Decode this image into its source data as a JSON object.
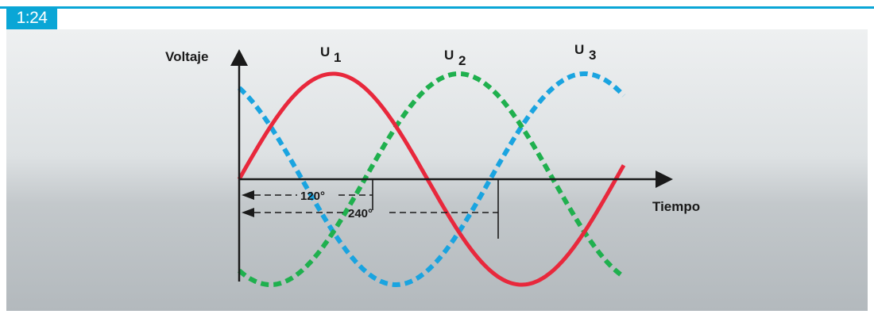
{
  "figure": {
    "number": "1:24"
  },
  "axes": {
    "y_label": "Voltaje",
    "x_label": "Tiempo"
  },
  "series": [
    {
      "name": "U",
      "subscript": "1",
      "color": "#e8283c",
      "style": "solid",
      "phase_deg": 0
    },
    {
      "name": "U",
      "subscript": "2",
      "color": "#1fb04e",
      "style": "dashed",
      "phase_deg": 120
    },
    {
      "name": "U",
      "subscript": "3",
      "color": "#1aa4e0",
      "style": "dashed",
      "phase_deg": 240
    }
  ],
  "annotations": {
    "shift_120": "120°",
    "shift_240": "240°"
  },
  "colors": {
    "accent": "#0aa6d6",
    "panel_top": "#e9ecee",
    "panel_bottom": "#b4babe"
  }
}
